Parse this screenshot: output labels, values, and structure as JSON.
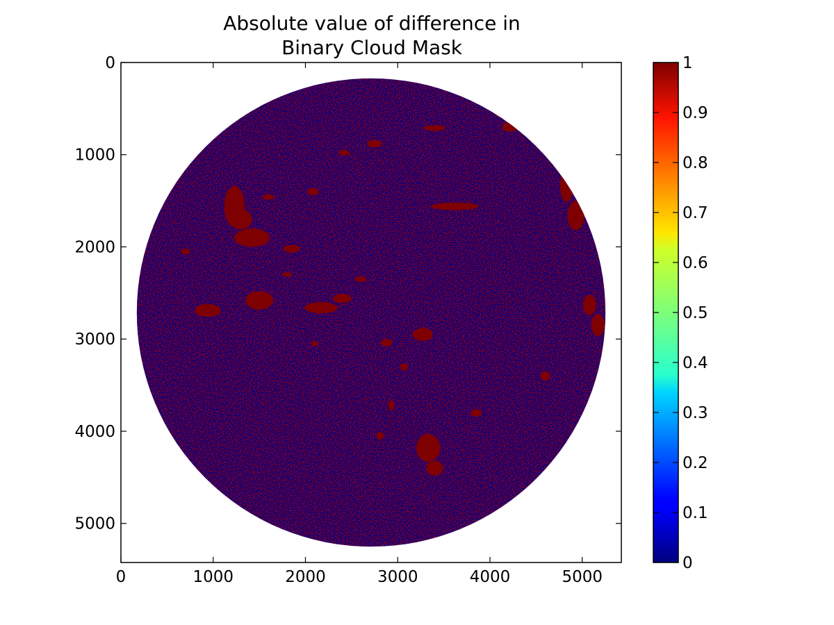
{
  "chart_data": {
    "type": "heatmap",
    "title_lines": [
      "Absolute value of difference in",
      "Binary Cloud Mask"
    ],
    "xlim": [
      0,
      5424
    ],
    "ylim": [
      5424,
      0
    ],
    "x_ticks": [
      {
        "value": 0,
        "label": "0"
      },
      {
        "value": 1000,
        "label": "1000"
      },
      {
        "value": 2000,
        "label": "2000"
      },
      {
        "value": 3000,
        "label": "3000"
      },
      {
        "value": 4000,
        "label": "4000"
      },
      {
        "value": 5000,
        "label": "5000"
      }
    ],
    "y_ticks": [
      {
        "value": 0,
        "label": "0"
      },
      {
        "value": 1000,
        "label": "1000"
      },
      {
        "value": 2000,
        "label": "2000"
      },
      {
        "value": 3000,
        "label": "3000"
      },
      {
        "value": 4000,
        "label": "4000"
      },
      {
        "value": 5000,
        "label": "5000"
      }
    ],
    "disk": {
      "center_x": 2712,
      "center_y": 2712,
      "radius": 2540
    },
    "values_present": [
      0,
      1
    ],
    "colormap": "jet",
    "colorbar": {
      "range": [
        0,
        1
      ],
      "ticks": [
        {
          "value": 0,
          "label": "0"
        },
        {
          "value": 0.1,
          "label": "0.1"
        },
        {
          "value": 0.2,
          "label": "0.2"
        },
        {
          "value": 0.3,
          "label": "0.3"
        },
        {
          "value": 0.4,
          "label": "0.4"
        },
        {
          "value": 0.5,
          "label": "0.5"
        },
        {
          "value": 0.6,
          "label": "0.6"
        },
        {
          "value": 0.7,
          "label": "0.7"
        },
        {
          "value": 0.8,
          "label": "0.8"
        },
        {
          "value": 0.9,
          "label": "0.9"
        },
        {
          "value": 1,
          "label": "1"
        }
      ]
    },
    "difference_regions": [
      {
        "x": 1230,
        "y": 1560,
        "rx": 110,
        "ry": 220
      },
      {
        "x": 1300,
        "y": 1700,
        "rx": 120,
        "ry": 110
      },
      {
        "x": 1420,
        "y": 1900,
        "rx": 190,
        "ry": 100
      },
      {
        "x": 1850,
        "y": 2020,
        "rx": 90,
        "ry": 40
      },
      {
        "x": 1600,
        "y": 1460,
        "rx": 60,
        "ry": 30
      },
      {
        "x": 2080,
        "y": 1400,
        "rx": 60,
        "ry": 40
      },
      {
        "x": 940,
        "y": 2690,
        "rx": 140,
        "ry": 70
      },
      {
        "x": 1500,
        "y": 2580,
        "rx": 150,
        "ry": 100
      },
      {
        "x": 2170,
        "y": 2660,
        "rx": 180,
        "ry": 60
      },
      {
        "x": 2400,
        "y": 2560,
        "rx": 100,
        "ry": 50
      },
      {
        "x": 2750,
        "y": 880,
        "rx": 80,
        "ry": 40
      },
      {
        "x": 2420,
        "y": 980,
        "rx": 60,
        "ry": 30
      },
      {
        "x": 3620,
        "y": 1560,
        "rx": 260,
        "ry": 40
      },
      {
        "x": 3400,
        "y": 710,
        "rx": 120,
        "ry": 30
      },
      {
        "x": 4220,
        "y": 700,
        "rx": 90,
        "ry": 50
      },
      {
        "x": 4830,
        "y": 1340,
        "rx": 70,
        "ry": 170
      },
      {
        "x": 4930,
        "y": 1660,
        "rx": 90,
        "ry": 160
      },
      {
        "x": 5080,
        "y": 2630,
        "rx": 70,
        "ry": 110
      },
      {
        "x": 5170,
        "y": 2850,
        "rx": 70,
        "ry": 120
      },
      {
        "x": 3270,
        "y": 2950,
        "rx": 110,
        "ry": 70
      },
      {
        "x": 3330,
        "y": 4180,
        "rx": 130,
        "ry": 150
      },
      {
        "x": 3400,
        "y": 4400,
        "rx": 90,
        "ry": 80
      },
      {
        "x": 2880,
        "y": 3040,
        "rx": 60,
        "ry": 40
      },
      {
        "x": 3070,
        "y": 3300,
        "rx": 40,
        "ry": 40
      },
      {
        "x": 2930,
        "y": 3720,
        "rx": 30,
        "ry": 60
      },
      {
        "x": 2810,
        "y": 4050,
        "rx": 40,
        "ry": 40
      },
      {
        "x": 2600,
        "y": 2350,
        "rx": 60,
        "ry": 30
      },
      {
        "x": 2100,
        "y": 3050,
        "rx": 40,
        "ry": 25
      },
      {
        "x": 3850,
        "y": 3800,
        "rx": 60,
        "ry": 40
      },
      {
        "x": 4600,
        "y": 3400,
        "rx": 50,
        "ry": 50
      },
      {
        "x": 1800,
        "y": 2300,
        "rx": 50,
        "ry": 25
      },
      {
        "x": 700,
        "y": 2050,
        "rx": 50,
        "ry": 30
      }
    ]
  }
}
